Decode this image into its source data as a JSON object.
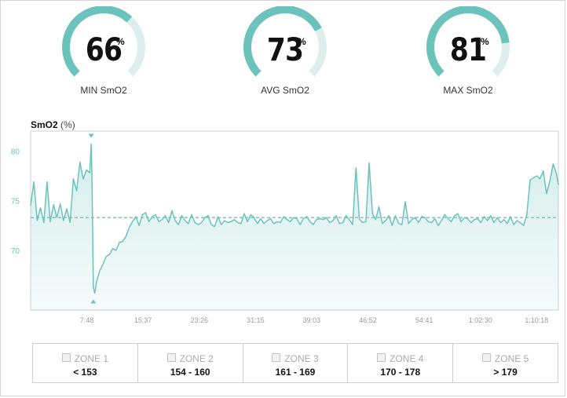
{
  "gauges": [
    {
      "value": "66",
      "unit": "%",
      "label": "MIN SmO2",
      "fill": 0.66
    },
    {
      "value": "73",
      "unit": "%",
      "label": "AVG SmO2",
      "fill": 0.73
    },
    {
      "value": "81",
      "unit": "%",
      "label": "MAX SmO2",
      "fill": 0.81
    }
  ],
  "colors": {
    "accent": "#6cc3bb",
    "track": "#dcefed",
    "fill_area": "#eaf6f5"
  },
  "chart_data": {
    "type": "area",
    "title": "SmO2",
    "unit": "(%)",
    "xlim": [
      0,
      4400
    ],
    "ylim": [
      64,
      82
    ],
    "yticks": [
      70,
      75,
      80
    ],
    "xtick_labels": [
      "7:48",
      "15:37",
      "23:26",
      "31:15",
      "39:03",
      "46:52",
      "54:41",
      "1:02:30",
      "1:10:18"
    ],
    "xtick_values": [
      468,
      937,
      1406,
      1875,
      2343,
      2812,
      3281,
      3750,
      4218
    ],
    "average_line": 73.3,
    "min_marker": {
      "x": 523,
      "y": 65.7
    },
    "max_marker": {
      "x": 505,
      "y": 80.7
    },
    "series": [
      {
        "x": [
          0,
          27,
          55,
          82,
          110,
          137,
          164,
          192,
          219,
          247,
          274,
          301,
          329,
          356,
          384,
          411,
          438,
          466,
          493,
          505,
          511,
          523,
          534,
          548,
          575,
          603,
          630,
          658,
          685,
          712,
          740,
          767,
          795,
          822,
          849,
          877,
          904,
          932,
          959,
          986,
          1014,
          1041,
          1069,
          1096,
          1123,
          1151,
          1178,
          1206,
          1233,
          1260,
          1288,
          1315,
          1343,
          1370,
          1397,
          1425,
          1452,
          1480,
          1507,
          1534,
          1562,
          1589,
          1617,
          1644,
          1671,
          1699,
          1726,
          1754,
          1781,
          1808,
          1836,
          1863,
          1891,
          1918,
          1945,
          1973,
          2000,
          2028,
          2055,
          2082,
          2110,
          2137,
          2165,
          2192,
          2219,
          2247,
          2274,
          2302,
          2329,
          2356,
          2384,
          2411,
          2439,
          2466,
          2493,
          2521,
          2548,
          2576,
          2603,
          2630,
          2658,
          2685,
          2713,
          2740,
          2767,
          2795,
          2822,
          2850,
          2877,
          2904,
          2932,
          2959,
          2987,
          3014,
          3041,
          3069,
          3096,
          3124,
          3151,
          3178,
          3206,
          3233,
          3261,
          3288,
          3315,
          3343,
          3370,
          3398,
          3425,
          3452,
          3480,
          3507,
          3535,
          3562,
          3589,
          3617,
          3644,
          3672,
          3699,
          3726,
          3754,
          3781,
          3809,
          3836,
          3863,
          3891,
          3918,
          3946,
          3973,
          4000,
          4028,
          4055,
          4082,
          4110,
          4137,
          4165,
          4192,
          4220,
          4247,
          4274,
          4302,
          4329,
          4357,
          4384,
          4400
        ],
        "y": [
          74.5,
          76.9,
          73.0,
          74.3,
          72.8,
          76.9,
          72.9,
          74.6,
          73.3,
          74.7,
          73.0,
          74.2,
          72.8,
          77.2,
          76.0,
          78.9,
          77.2,
          78.1,
          77.8,
          80.7,
          78.0,
          66.3,
          65.7,
          66.8,
          67.9,
          68.6,
          69.4,
          69.6,
          70.2,
          70.0,
          70.8,
          70.9,
          71.4,
          72.3,
          72.9,
          73.4,
          72.5,
          73.6,
          73.8,
          72.9,
          73.4,
          73.6,
          72.9,
          73.1,
          73.5,
          72.8,
          74.0,
          73.0,
          72.6,
          73.5,
          73.0,
          72.7,
          73.6,
          72.8,
          72.6,
          72.8,
          73.3,
          73.5,
          72.6,
          72.4,
          73.4,
          72.6,
          73.0,
          72.8,
          72.9,
          73.1,
          72.8,
          72.7,
          73.7,
          72.9,
          73.6,
          73.3,
          72.7,
          73.2,
          72.7,
          73.0,
          73.2,
          72.7,
          72.9,
          72.8,
          73.4,
          73.1,
          72.9,
          73.3,
          73.2,
          72.6,
          73.2,
          73.4,
          72.9,
          72.6,
          73.1,
          73.2,
          73.1,
          73.3,
          72.8,
          73.0,
          73.5,
          72.7,
          72.8,
          73.5,
          73.1,
          72.6,
          78.3,
          73.2,
          72.8,
          72.9,
          78.8,
          73.7,
          73.1,
          74.4,
          72.7,
          73.0,
          73.5,
          72.5,
          73.5,
          72.7,
          72.6,
          74.9,
          72.7,
          73.1,
          73.3,
          72.8,
          73.4,
          73.3,
          72.9,
          72.8,
          73.2,
          72.5,
          73.0,
          73.6,
          73.2,
          72.9,
          73.5,
          73.7,
          72.9,
          73.3,
          73.2,
          72.8,
          73.1,
          73.2,
          72.8,
          73.4,
          73.0,
          73.5,
          72.8,
          73.3,
          72.8,
          73.1,
          72.7,
          73.4,
          72.6,
          73.0,
          72.8,
          72.5,
          73.6,
          77.1,
          77.3,
          77.5,
          77.2,
          78.0,
          75.7,
          77.0,
          78.7,
          77.7,
          76.6
        ]
      }
    ]
  },
  "zones": [
    {
      "name": "ZONE 1",
      "range": "< 153"
    },
    {
      "name": "ZONE 2",
      "range": "154 - 160"
    },
    {
      "name": "ZONE 3",
      "range": "161 - 169"
    },
    {
      "name": "ZONE 4",
      "range": "170 - 178"
    },
    {
      "name": "ZONE 5",
      "range": "> 179"
    }
  ]
}
